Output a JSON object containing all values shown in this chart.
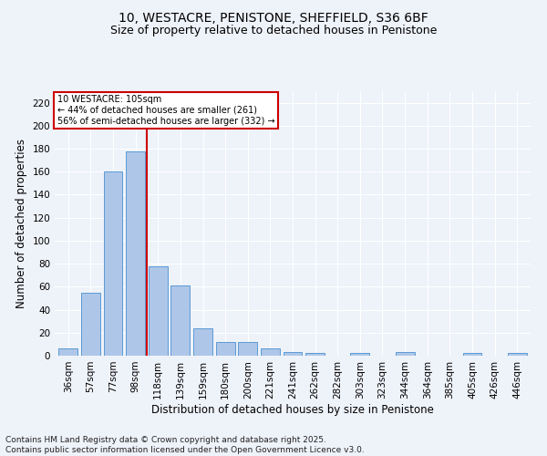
{
  "title": "10, WESTACRE, PENISTONE, SHEFFIELD, S36 6BF",
  "subtitle": "Size of property relative to detached houses in Penistone",
  "xlabel": "Distribution of detached houses by size in Penistone",
  "ylabel": "Number of detached properties",
  "categories": [
    "36sqm",
    "57sqm",
    "77sqm",
    "98sqm",
    "118sqm",
    "139sqm",
    "159sqm",
    "180sqm",
    "200sqm",
    "221sqm",
    "241sqm",
    "262sqm",
    "282sqm",
    "303sqm",
    "323sqm",
    "344sqm",
    "364sqm",
    "385sqm",
    "405sqm",
    "426sqm",
    "446sqm"
  ],
  "values": [
    6,
    55,
    160,
    178,
    78,
    61,
    24,
    12,
    12,
    6,
    3,
    2,
    0,
    2,
    0,
    3,
    0,
    0,
    2,
    0,
    2
  ],
  "bar_color": "#aec6e8",
  "bar_edge_color": "#5b9bd5",
  "vline_x": 3.5,
  "vline_color": "#cc0000",
  "annotation_line1": "10 WESTACRE: 105sqm",
  "annotation_line2": "← 44% of detached houses are smaller (261)",
  "annotation_line3": "56% of semi-detached houses are larger (332) →",
  "annotation_box_color": "#cc0000",
  "ylim": [
    0,
    230
  ],
  "yticks": [
    0,
    20,
    40,
    60,
    80,
    100,
    120,
    140,
    160,
    180,
    200,
    220
  ],
  "footer": "Contains HM Land Registry data © Crown copyright and database right 2025.\nContains public sector information licensed under the Open Government Licence v3.0.",
  "background_color": "#eef2f9",
  "grid_color": "#ffffff",
  "title_fontsize": 10,
  "subtitle_fontsize": 9,
  "axis_label_fontsize": 8.5,
  "tick_fontsize": 7.5,
  "footer_fontsize": 6.5
}
